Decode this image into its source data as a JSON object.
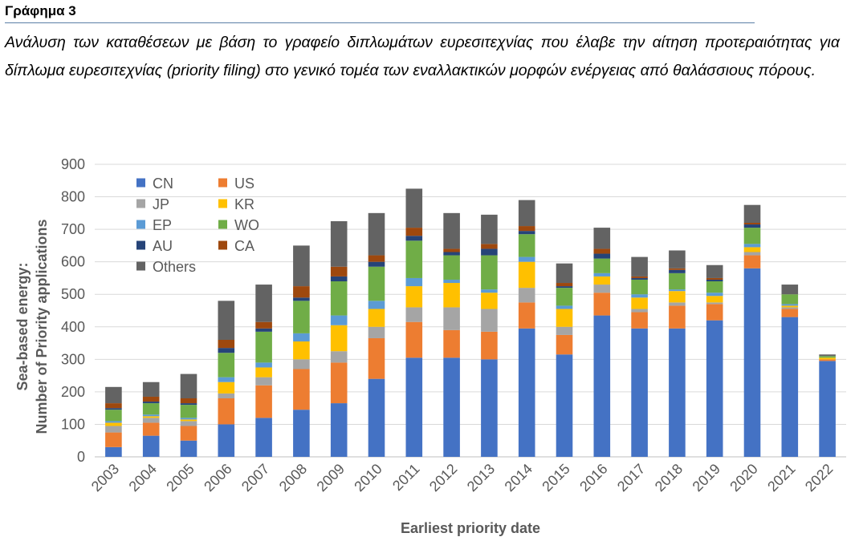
{
  "heading": "Γράφημα 3",
  "caption": "Ανάλυση των καταθέσεων με βάση το γραφείο διπλωμάτων ευρεσιτεχνίας που έλαβε την αίτηση προτεραιότητας για δίπλωμα ευρεσιτεχνίας (priority filing) στο γενικό τομέα των εναλλακτικών μορφών ενέργειας από θαλάσσιους πόρους.",
  "chart_data": {
    "type": "bar",
    "stacked": true,
    "xlabel": "Earliest priority date",
    "ylabel": [
      "Sea-based energy:",
      "Number of Priority applications"
    ],
    "ylim": [
      0,
      900
    ],
    "yticks": [
      0,
      100,
      200,
      300,
      400,
      500,
      600,
      700,
      800,
      900
    ],
    "grid": true,
    "legend_position": "top-left",
    "categories": [
      "2003",
      "2004",
      "2005",
      "2006",
      "2007",
      "2008",
      "2009",
      "2010",
      "2011",
      "2012",
      "2013",
      "2014",
      "2015",
      "2016",
      "2017",
      "2018",
      "2019",
      "2020",
      "2021",
      "2022"
    ],
    "series": [
      {
        "name": "CN",
        "color": "#4472c4",
        "values": [
          30,
          65,
          50,
          100,
          120,
          145,
          165,
          240,
          305,
          305,
          300,
          395,
          315,
          435,
          395,
          395,
          420,
          580,
          430,
          295
        ]
      },
      {
        "name": "US",
        "color": "#ed7d31",
        "values": [
          45,
          40,
          45,
          80,
          100,
          125,
          125,
          125,
          110,
          85,
          85,
          80,
          60,
          70,
          50,
          70,
          50,
          40,
          25,
          5
        ]
      },
      {
        "name": "JP",
        "color": "#a5a5a5",
        "values": [
          20,
          15,
          15,
          15,
          25,
          30,
          35,
          35,
          45,
          70,
          70,
          45,
          25,
          25,
          10,
          10,
          5,
          10,
          5,
          0
        ]
      },
      {
        "name": "KR",
        "color": "#ffc000",
        "values": [
          10,
          5,
          5,
          35,
          30,
          55,
          80,
          55,
          65,
          75,
          50,
          80,
          55,
          25,
          35,
          35,
          20,
          15,
          5,
          5
        ]
      },
      {
        "name": "EP",
        "color": "#5b9bd5",
        "values": [
          5,
          5,
          5,
          15,
          15,
          25,
          30,
          25,
          25,
          10,
          10,
          15,
          10,
          10,
          10,
          5,
          10,
          10,
          5,
          0
        ]
      },
      {
        "name": "WO",
        "color": "#70ad47",
        "values": [
          35,
          35,
          40,
          75,
          95,
          100,
          105,
          105,
          115,
          75,
          105,
          70,
          55,
          45,
          45,
          50,
          35,
          50,
          30,
          5
        ]
      },
      {
        "name": "AU",
        "color": "#264478",
        "values": [
          5,
          5,
          5,
          15,
          10,
          10,
          15,
          15,
          15,
          10,
          20,
          10,
          5,
          15,
          5,
          10,
          5,
          10,
          0,
          0
        ]
      },
      {
        "name": "CA",
        "color": "#9e480e",
        "values": [
          15,
          15,
          15,
          25,
          20,
          35,
          30,
          20,
          25,
          10,
          15,
          15,
          10,
          15,
          5,
          5,
          5,
          5,
          0,
          0
        ]
      },
      {
        "name": "Others",
        "color": "#636363",
        "values": [
          50,
          45,
          75,
          120,
          115,
          125,
          140,
          130,
          120,
          110,
          90,
          80,
          60,
          65,
          60,
          55,
          40,
          55,
          30,
          5
        ]
      }
    ]
  }
}
